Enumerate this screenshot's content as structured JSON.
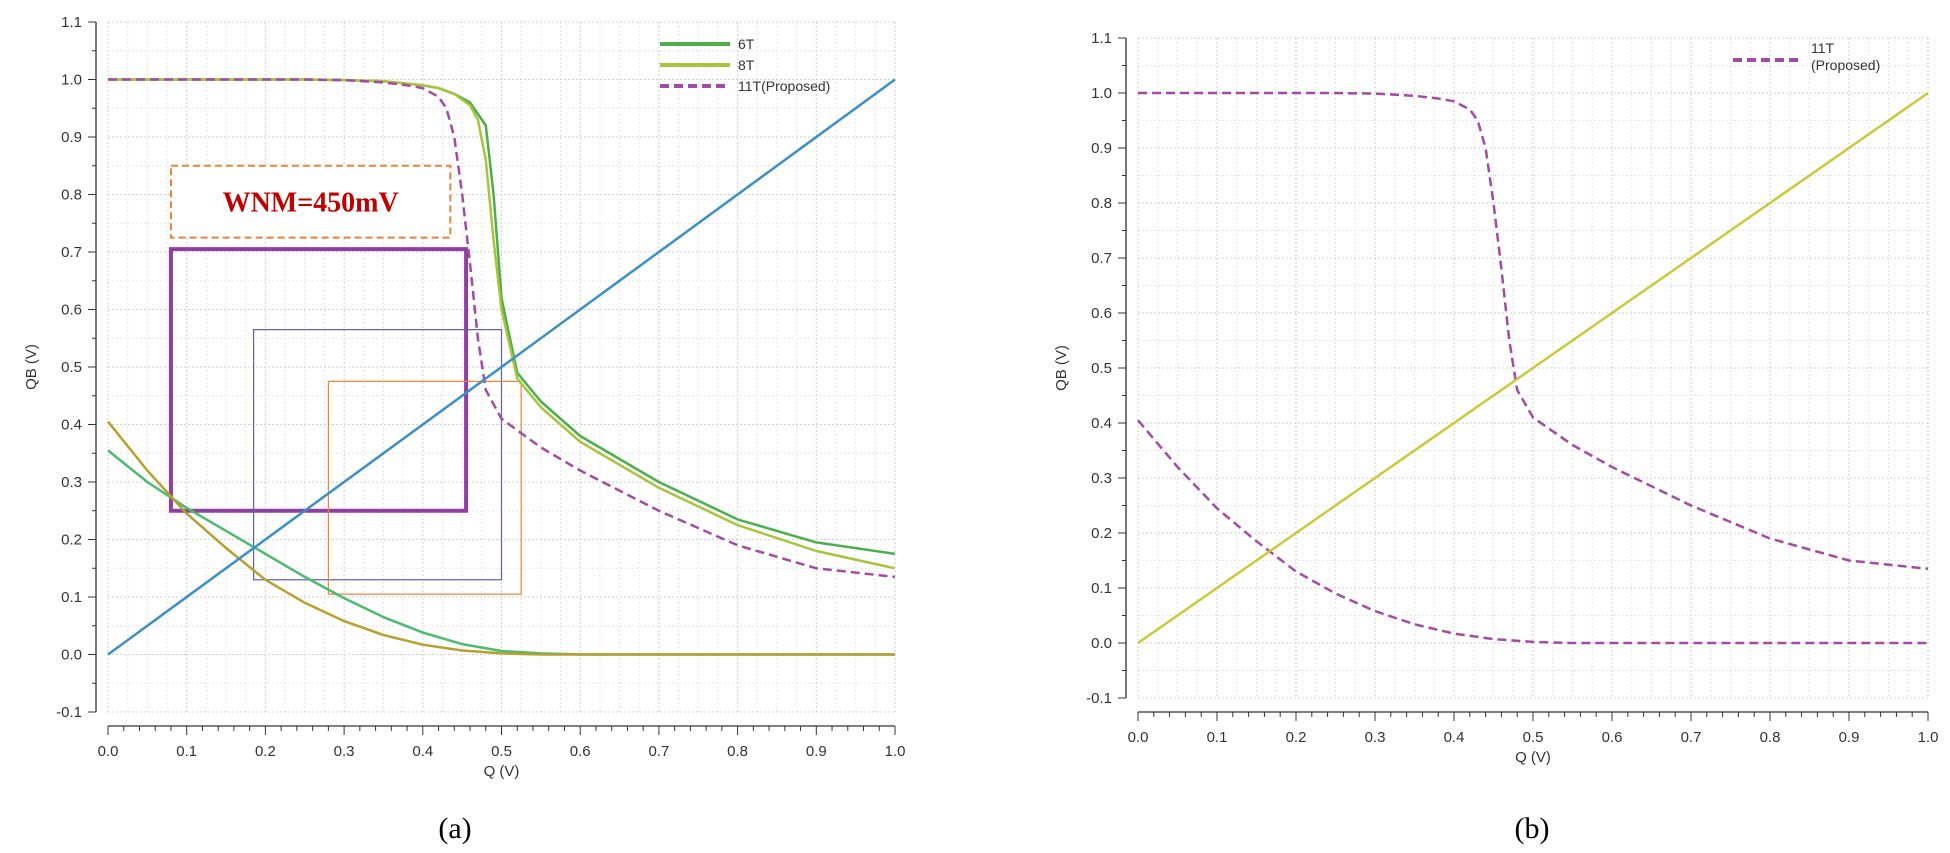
{
  "chart_data": [
    {
      "type": "line",
      "panel": "a",
      "caption": "(a)",
      "xlabel": "Q (V)",
      "ylabel": "QB (V)",
      "xlim": [
        0,
        1.0
      ],
      "ylim": [
        -0.1,
        1.1
      ],
      "x_ticks": [
        "0.0",
        "0.1",
        "0.2",
        "0.3",
        "0.4",
        "0.5",
        "0.6",
        "0.7",
        "0.8",
        "0.9",
        "1.0"
      ],
      "y_ticks": [
        "-0.1",
        "0.0",
        "0.1",
        "0.2",
        "0.3",
        "0.4",
        "0.5",
        "0.6",
        "0.7",
        "0.8",
        "0.9",
        "1.0",
        "1.1"
      ],
      "grid": true,
      "legend_position": "top-right",
      "series": [
        {
          "name": "6T",
          "color": "#4cae4c",
          "style": "solid",
          "in_legend": true,
          "x": [
            0,
            0.05,
            0.1,
            0.15,
            0.2,
            0.25,
            0.3,
            0.35,
            0.4,
            0.42,
            0.44,
            0.46,
            0.48,
            0.49,
            0.5,
            0.52,
            0.55,
            0.6,
            0.7,
            0.8,
            0.9,
            1.0
          ],
          "y": [
            1.0,
            1.0,
            1.0,
            1.0,
            1.0,
            1.0,
            0.999,
            0.997,
            0.99,
            0.985,
            0.975,
            0.96,
            0.92,
            0.8,
            0.62,
            0.49,
            0.44,
            0.38,
            0.3,
            0.235,
            0.195,
            0.175
          ]
        },
        {
          "name": "8T",
          "color": "#a8c43a",
          "style": "solid",
          "in_legend": true,
          "x": [
            0,
            0.05,
            0.1,
            0.15,
            0.2,
            0.25,
            0.3,
            0.35,
            0.4,
            0.42,
            0.44,
            0.46,
            0.47,
            0.48,
            0.49,
            0.5,
            0.52,
            0.55,
            0.6,
            0.7,
            0.8,
            0.9,
            1.0
          ],
          "y": [
            1.0,
            1.0,
            1.0,
            1.0,
            1.0,
            1.0,
            0.999,
            0.997,
            0.99,
            0.985,
            0.975,
            0.955,
            0.93,
            0.86,
            0.72,
            0.6,
            0.48,
            0.43,
            0.37,
            0.29,
            0.225,
            0.18,
            0.15
          ]
        },
        {
          "name": "11T(Proposed)",
          "color": "#a34ba3",
          "style": "dashed",
          "in_legend": true,
          "x": [
            0,
            0.05,
            0.1,
            0.15,
            0.2,
            0.25,
            0.3,
            0.35,
            0.38,
            0.4,
            0.42,
            0.43,
            0.44,
            0.45,
            0.46,
            0.47,
            0.48,
            0.5,
            0.55,
            0.6,
            0.7,
            0.8,
            0.9,
            1.0
          ],
          "y": [
            1.0,
            1.0,
            1.0,
            1.0,
            1.0,
            1.0,
            0.999,
            0.995,
            0.99,
            0.985,
            0.97,
            0.95,
            0.9,
            0.8,
            0.68,
            0.55,
            0.46,
            0.41,
            0.36,
            0.32,
            0.25,
            0.19,
            0.15,
            0.135
          ]
        },
        {
          "name": "6T-mirror",
          "color": "#4cbb6e",
          "style": "solid",
          "in_legend": false,
          "x": [
            0,
            0.05,
            0.1,
            0.15,
            0.2,
            0.25,
            0.3,
            0.35,
            0.4,
            0.45,
            0.5,
            0.55,
            0.6,
            0.7,
            0.8,
            0.9,
            1.0
          ],
          "y": [
            0.355,
            0.3,
            0.255,
            0.215,
            0.175,
            0.135,
            0.098,
            0.065,
            0.038,
            0.018,
            0.006,
            0.002,
            0.0,
            0.0,
            0.0,
            0.0,
            0.0
          ]
        },
        {
          "name": "8T-mirror",
          "color": "#b7a02e",
          "style": "solid",
          "in_legend": false,
          "x": [
            0,
            0.05,
            0.1,
            0.15,
            0.2,
            0.25,
            0.3,
            0.35,
            0.4,
            0.45,
            0.5,
            0.55,
            0.6,
            0.7,
            0.8,
            0.9,
            1.0
          ],
          "y": [
            0.405,
            0.32,
            0.245,
            0.185,
            0.13,
            0.09,
            0.058,
            0.034,
            0.017,
            0.007,
            0.002,
            0.0,
            0.0,
            0.0,
            0.0,
            0.0,
            0.0
          ]
        },
        {
          "name": "x=y",
          "color": "#3b8fc4",
          "style": "solid",
          "in_legend": false,
          "x": [
            0,
            1.0
          ],
          "y": [
            0,
            1.0
          ]
        }
      ],
      "rectangles": [
        {
          "color": "#8f3fa0",
          "width": 4,
          "x0": 0.08,
          "x1": 0.455,
          "y0": 0.25,
          "y1": 0.705
        },
        {
          "color": "#5b5fb5",
          "width": 1.2,
          "x0": 0.185,
          "x1": 0.5,
          "y0": 0.13,
          "y1": 0.565
        },
        {
          "color": "#e8833a",
          "width": 1.2,
          "x0": 0.28,
          "x1": 0.525,
          "y0": 0.105,
          "y1": 0.475
        }
      ],
      "annotation": {
        "text": "WNM=450mV",
        "color": "#c00000",
        "box_color": "#e8833a",
        "x0": 0.08,
        "x1": 0.435,
        "y0": 0.725,
        "y1": 0.85
      }
    },
    {
      "type": "line",
      "panel": "b",
      "caption": "(b)",
      "xlabel": "Q (V)",
      "ylabel": "QB (V)",
      "xlim": [
        0,
        1.0
      ],
      "ylim": [
        -0.1,
        1.1
      ],
      "x_ticks": [
        "0.0",
        "0.1",
        "0.2",
        "0.3",
        "0.4",
        "0.5",
        "0.6",
        "0.7",
        "0.8",
        "0.9",
        "1.0"
      ],
      "y_ticks": [
        "-0.1",
        "0.0",
        "0.1",
        "0.2",
        "0.3",
        "0.4",
        "0.5",
        "0.6",
        "0.7",
        "0.8",
        "0.9",
        "1.0",
        "1.1"
      ],
      "grid": true,
      "legend_position": "top-right",
      "legend_lines": [
        "11T",
        "(Proposed)"
      ],
      "series": [
        {
          "name": "11T (Proposed)",
          "color": "#a34ba3",
          "style": "dashed",
          "in_legend": true,
          "x": [
            0,
            0.05,
            0.1,
            0.15,
            0.2,
            0.25,
            0.3,
            0.35,
            0.38,
            0.4,
            0.42,
            0.43,
            0.44,
            0.45,
            0.46,
            0.47,
            0.48,
            0.5,
            0.55,
            0.6,
            0.7,
            0.8,
            0.9,
            1.0
          ],
          "y": [
            1.0,
            1.0,
            1.0,
            1.0,
            1.0,
            1.0,
            0.999,
            0.995,
            0.99,
            0.985,
            0.97,
            0.95,
            0.9,
            0.8,
            0.68,
            0.55,
            0.46,
            0.41,
            0.36,
            0.32,
            0.25,
            0.19,
            0.15,
            0.135
          ]
        },
        {
          "name": "11T-mirror",
          "color": "#a34ba3",
          "style": "dashed",
          "in_legend": false,
          "x": [
            0,
            0.05,
            0.1,
            0.15,
            0.2,
            0.25,
            0.3,
            0.35,
            0.4,
            0.45,
            0.5,
            0.55,
            0.6,
            0.7,
            0.8,
            0.9,
            1.0
          ],
          "y": [
            0.405,
            0.32,
            0.245,
            0.185,
            0.13,
            0.09,
            0.058,
            0.034,
            0.017,
            0.007,
            0.002,
            0.0,
            0.0,
            0.0,
            0.0,
            0.0,
            0.0
          ]
        },
        {
          "name": "x=y",
          "color": "#c9c93a",
          "style": "solid",
          "in_legend": false,
          "x": [
            0,
            1.0
          ],
          "y": [
            0,
            1.0
          ]
        }
      ]
    }
  ]
}
